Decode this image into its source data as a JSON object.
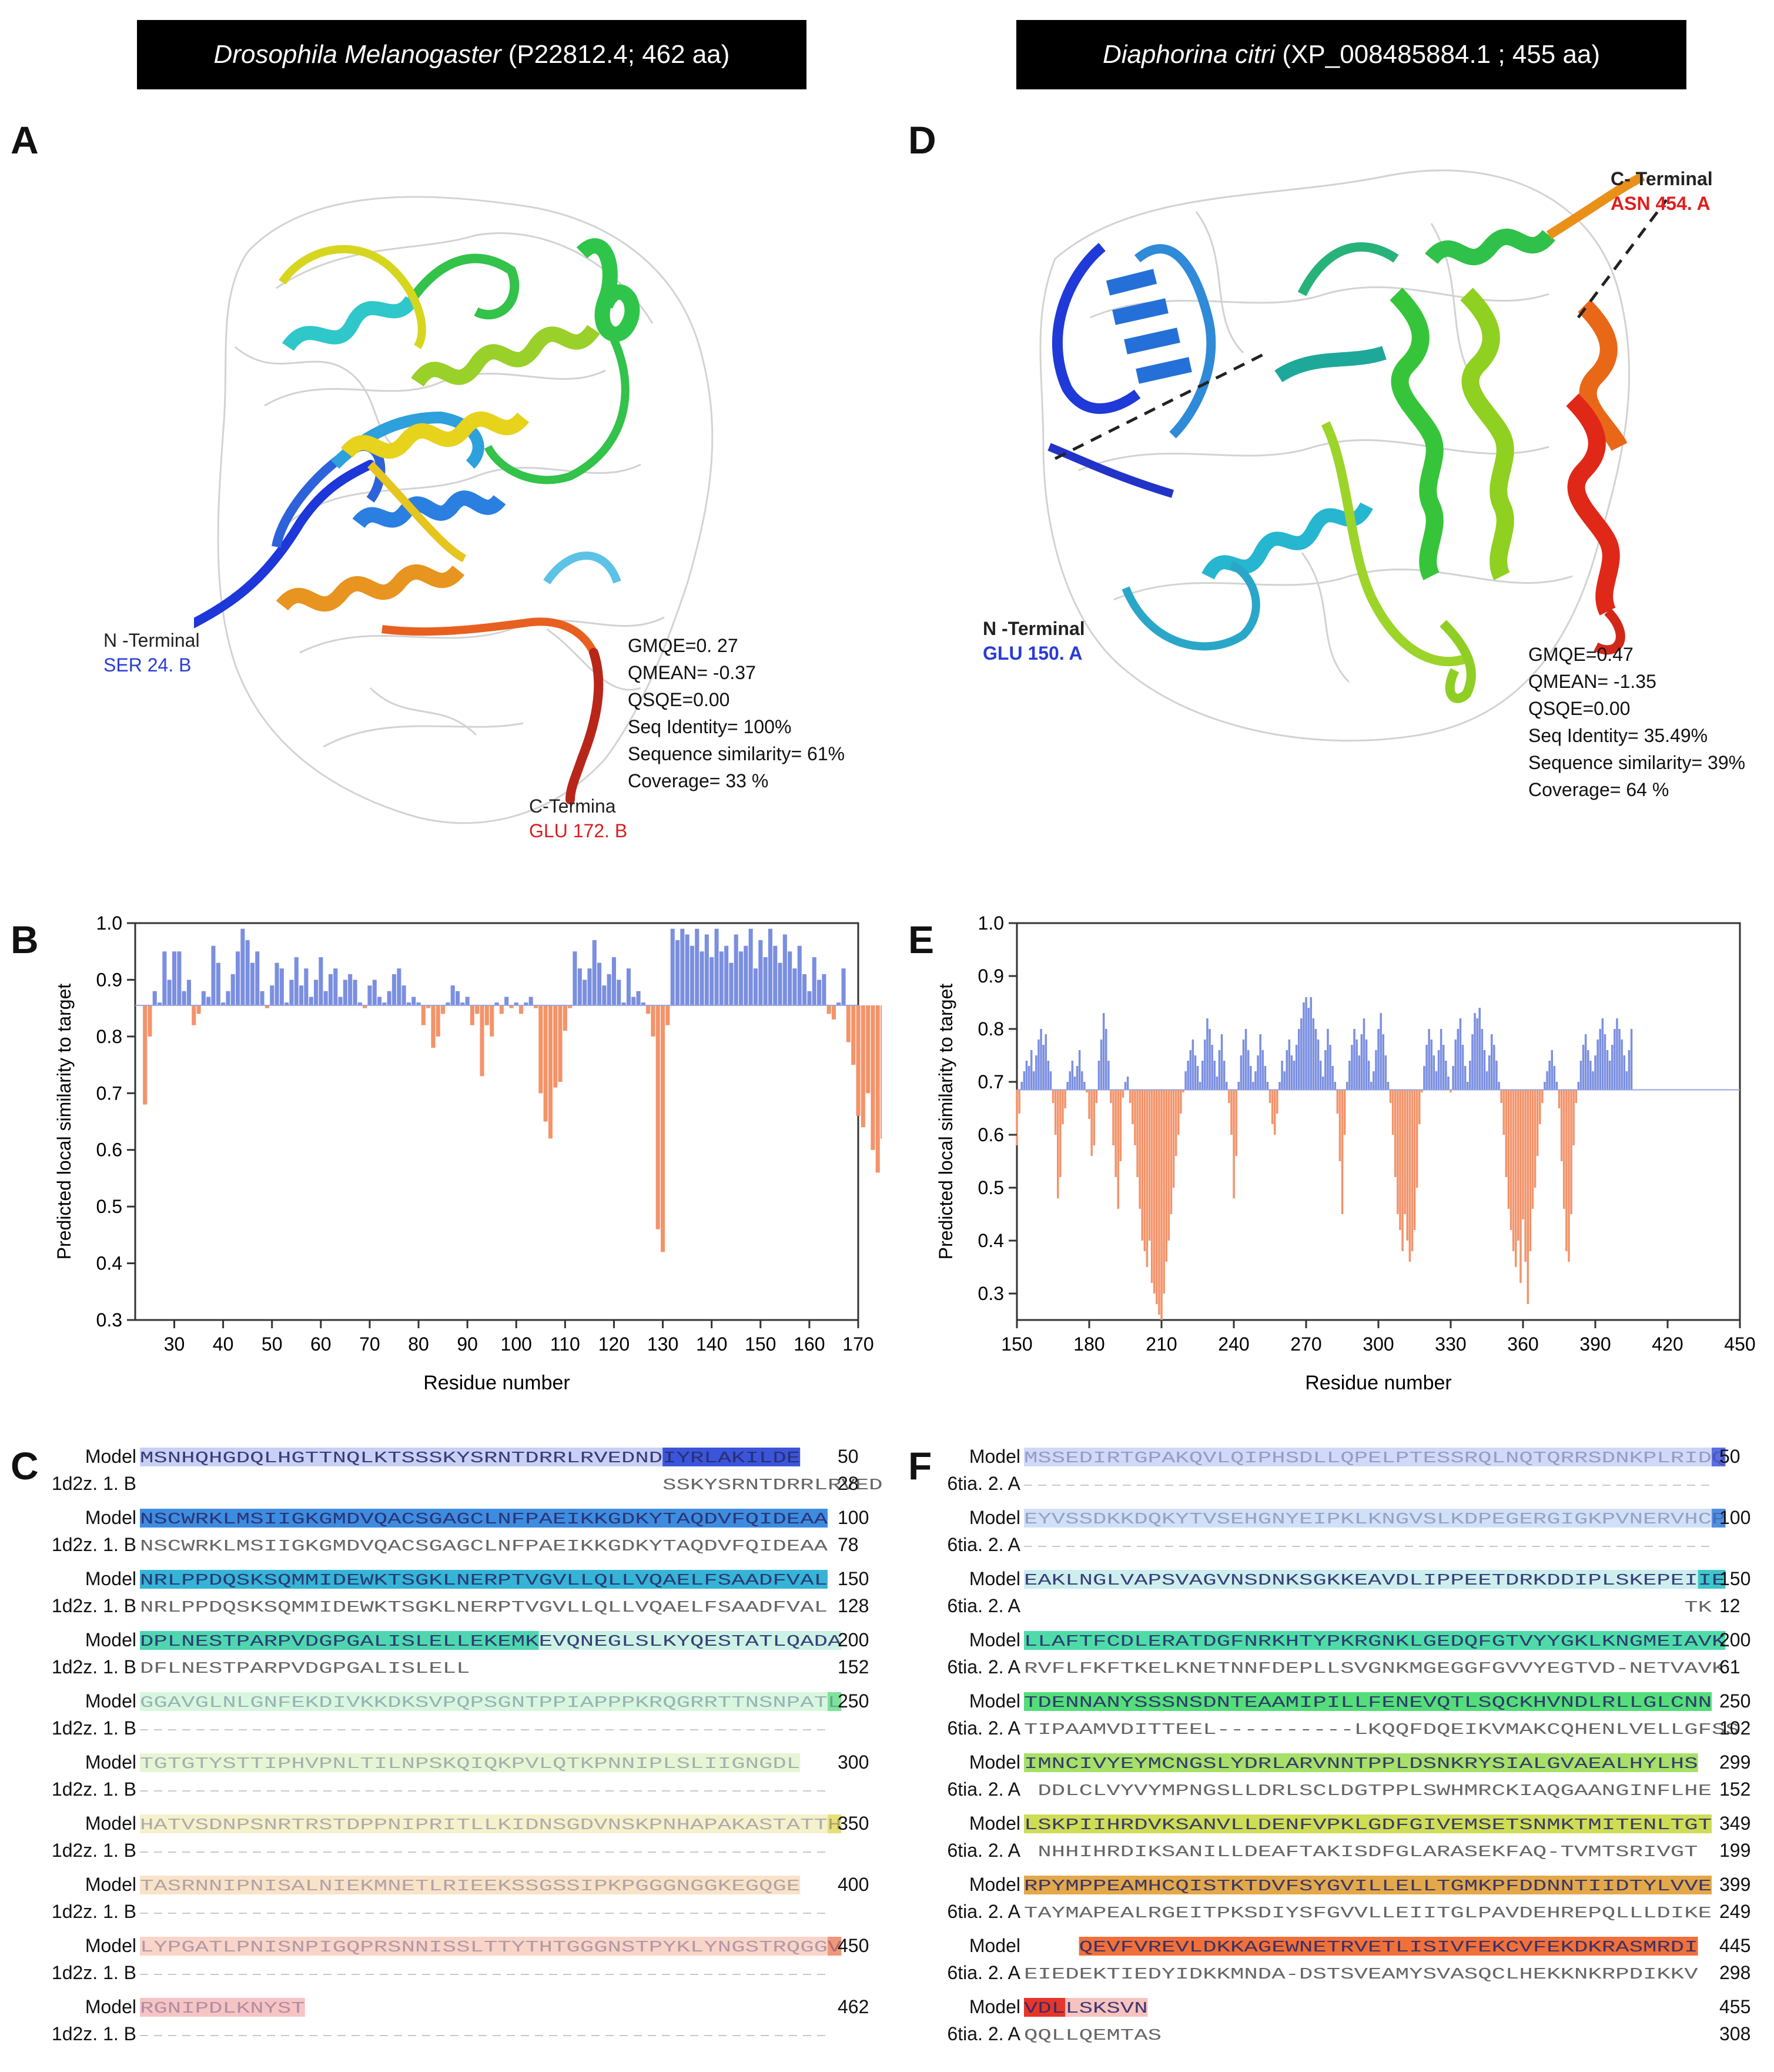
{
  "headers": {
    "left": {
      "species": "Drosophila Melanogaster",
      "rest": "(P22812.4;  462 aa)"
    },
    "right": {
      "species": "Diaphorina citri",
      "rest": "(XP_008485884.1 ; 455 aa)"
    }
  },
  "panels": {
    "A": "A",
    "B": "B",
    "C": "C",
    "D": "D",
    "E": "E",
    "F": "F"
  },
  "structure_A": {
    "n_label": "N -Terminal",
    "n_res": "SER 24. B",
    "c_label": "C-Termina",
    "c_res": "GLU 172. B",
    "metrics": [
      "GMQE=0. 27",
      "QMEAN= -0.37",
      "QSQE=0.00",
      "Seq Identity= 100%",
      "Sequence similarity= 61%",
      "Coverage= 33 %"
    ]
  },
  "structure_D": {
    "n_label": "N -Terminal",
    "n_res": "GLU  150. A",
    "c_label": "C- Terminal",
    "c_res": "ASN 454. A",
    "metrics": [
      "GMQE=0.47",
      "QMEAN= -1.35",
      "QSQE=0.00",
      "Seq Identity= 35.49%",
      "Sequence similarity= 39%",
      "Coverage= 64 %"
    ]
  },
  "colors": {
    "above": "#7b8fe0",
    "below": "#f3936a",
    "border": "#333333"
  },
  "chart_data": [
    {
      "type": "bar",
      "panel": "B",
      "xlabel": "Residue number",
      "ylabel": "Predicted local similarity to target",
      "xlim": [
        22,
        170
      ],
      "ylim": [
        0.3,
        1.0
      ],
      "baseline": 0.855,
      "xticks": [
        30,
        40,
        50,
        60,
        70,
        80,
        90,
        100,
        110,
        120,
        130,
        140,
        150,
        160,
        170
      ],
      "yticks": [
        "0.3",
        "0.4",
        "0.5",
        "0.6",
        "0.7",
        "0.8",
        "0.9",
        "1.0"
      ],
      "x_start": 24,
      "values": [
        0.68,
        0.8,
        0.88,
        0.86,
        0.95,
        0.9,
        0.95,
        0.95,
        0.88,
        0.9,
        0.82,
        0.84,
        0.88,
        0.87,
        0.96,
        0.93,
        0.86,
        0.88,
        0.91,
        0.95,
        0.99,
        0.97,
        0.93,
        0.95,
        0.88,
        0.85,
        0.89,
        0.93,
        0.92,
        0.86,
        0.9,
        0.94,
        0.89,
        0.92,
        0.87,
        0.9,
        0.94,
        0.88,
        0.91,
        0.92,
        0.87,
        0.9,
        0.91,
        0.9,
        0.86,
        0.85,
        0.89,
        0.9,
        0.87,
        0.86,
        0.88,
        0.91,
        0.92,
        0.89,
        0.86,
        0.87,
        0.86,
        0.82,
        0.85,
        0.78,
        0.8,
        0.84,
        0.86,
        0.89,
        0.88,
        0.86,
        0.87,
        0.82,
        0.84,
        0.73,
        0.82,
        0.8,
        0.86,
        0.84,
        0.87,
        0.85,
        0.86,
        0.84,
        0.86,
        0.87,
        0.85,
        0.7,
        0.65,
        0.62,
        0.71,
        0.72,
        0.81,
        0.85,
        0.95,
        0.92,
        0.9,
        0.92,
        0.97,
        0.93,
        0.89,
        0.91,
        0.94,
        0.9,
        0.86,
        0.92,
        0.87,
        0.88,
        0.86,
        0.84,
        0.8,
        0.46,
        0.42,
        0.82,
        0.99,
        0.97,
        0.99,
        0.98,
        0.96,
        0.99,
        0.95,
        0.98,
        0.94,
        0.99,
        0.95,
        0.96,
        0.93,
        0.98,
        0.95,
        0.96,
        0.99,
        0.92,
        0.97,
        0.94,
        0.99,
        0.96,
        0.93,
        0.98,
        0.95,
        0.92,
        0.96,
        0.91,
        0.88,
        0.94,
        0.9,
        0.91,
        0.84,
        0.83,
        0.86,
        0.92,
        0.79,
        0.75,
        0.66,
        0.64,
        0.7,
        0.6,
        0.56,
        0.62,
        0.47,
        0.58,
        0.43,
        0.52,
        0.55
      ]
    },
    {
      "type": "bar",
      "panel": "E",
      "xlabel": "Residue number",
      "ylabel": "Predicted local similarity to target",
      "xlim": [
        150,
        450
      ],
      "ylim": [
        0.25,
        1.0
      ],
      "baseline": 0.685,
      "xticks": [
        150,
        180,
        210,
        240,
        270,
        300,
        330,
        360,
        390,
        420,
        450
      ],
      "yticks": [
        "0.3",
        "0.4",
        "0.5",
        "0.6",
        "0.7",
        "0.8",
        "0.9",
        "1.0"
      ],
      "x_start": 150,
      "values": [
        0.58,
        0.64,
        0.7,
        0.72,
        0.74,
        0.73,
        0.76,
        0.72,
        0.75,
        0.78,
        0.8,
        0.77,
        0.79,
        0.74,
        0.72,
        0.66,
        0.6,
        0.48,
        0.52,
        0.62,
        0.65,
        0.7,
        0.72,
        0.74,
        0.71,
        0.73,
        0.76,
        0.72,
        0.7,
        0.68,
        0.63,
        0.56,
        0.58,
        0.66,
        0.74,
        0.78,
        0.83,
        0.8,
        0.74,
        0.66,
        0.58,
        0.52,
        0.46,
        0.55,
        0.67,
        0.7,
        0.71,
        0.66,
        0.62,
        0.58,
        0.52,
        0.46,
        0.4,
        0.38,
        0.35,
        0.4,
        0.32,
        0.3,
        0.28,
        0.26,
        0.25,
        0.3,
        0.36,
        0.4,
        0.45,
        0.5,
        0.56,
        0.6,
        0.64,
        0.68,
        0.72,
        0.74,
        0.76,
        0.78,
        0.75,
        0.73,
        0.7,
        0.74,
        0.78,
        0.82,
        0.8,
        0.77,
        0.74,
        0.71,
        0.76,
        0.79,
        0.74,
        0.7,
        0.66,
        0.6,
        0.48,
        0.56,
        0.7,
        0.75,
        0.78,
        0.8,
        0.76,
        0.73,
        0.7,
        0.72,
        0.75,
        0.79,
        0.76,
        0.73,
        0.7,
        0.66,
        0.62,
        0.6,
        0.64,
        0.7,
        0.74,
        0.72,
        0.76,
        0.78,
        0.75,
        0.74,
        0.77,
        0.8,
        0.82,
        0.85,
        0.86,
        0.84,
        0.86,
        0.82,
        0.8,
        0.78,
        0.74,
        0.71,
        0.76,
        0.8,
        0.77,
        0.73,
        0.7,
        0.64,
        0.55,
        0.45,
        0.6,
        0.7,
        0.74,
        0.77,
        0.8,
        0.78,
        0.75,
        0.79,
        0.82,
        0.78,
        0.74,
        0.7,
        0.72,
        0.76,
        0.8,
        0.83,
        0.79,
        0.75,
        0.7,
        0.66,
        0.6,
        0.52,
        0.45,
        0.42,
        0.38,
        0.45,
        0.4,
        0.36,
        0.38,
        0.42,
        0.5,
        0.62,
        0.68,
        0.73,
        0.77,
        0.8,
        0.78,
        0.75,
        0.72,
        0.76,
        0.8,
        0.77,
        0.74,
        0.71,
        0.68,
        0.73,
        0.78,
        0.8,
        0.82,
        0.77,
        0.73,
        0.7,
        0.74,
        0.79,
        0.83,
        0.82,
        0.84,
        0.8,
        0.76,
        0.72,
        0.75,
        0.79,
        0.77,
        0.74,
        0.7,
        0.66,
        0.6,
        0.52,
        0.46,
        0.42,
        0.38,
        0.35,
        0.4,
        0.32,
        0.44,
        0.36,
        0.28,
        0.38,
        0.46,
        0.5,
        0.56,
        0.62,
        0.66,
        0.7,
        0.72,
        0.74,
        0.76,
        0.73,
        0.7,
        0.65,
        0.55,
        0.46,
        0.38,
        0.36,
        0.45,
        0.58,
        0.66,
        0.7,
        0.74,
        0.77,
        0.79,
        0.76,
        0.74,
        0.72,
        0.75,
        0.78,
        0.8,
        0.82,
        0.79,
        0.76,
        0.74,
        0.77,
        0.8,
        0.82,
        0.8,
        0.78,
        0.75,
        0.72,
        0.76,
        0.8
      ]
    }
  ],
  "alignment_C": {
    "model_label": "Model",
    "template_label": "1d2z. 1. B",
    "rows": [
      {
        "model": "MSNHQHGDQLHGTTNQLKTSSSKYSRNTDRRLRVEDNDIYRLAKILDE",
        "model_faded": 38,
        "template": "SSKYSRNTDRRLRVEDNDIYRLAKILDE",
        "tmpl_offset": 38,
        "mnum": "50",
        "tnum": "28",
        "color": "#3a55d9",
        "fade": "#c9d0f5"
      },
      {
        "model": "NSCWRKLMSIIGKGMDVQACSGAGCLNFPAEIKKGDKYTAQDVFQIDEAA",
        "model_faded": 0,
        "template": "NSCWRKLMSIIGKGMDVQACSGAGCLNFPAEIKKGDKYTAQDVFQIDEAA",
        "tmpl_offset": 0,
        "mnum": "100",
        "tnum": "78",
        "color": "#3d8ce0",
        "fade": "#c9ddf5"
      },
      {
        "model": "NRLPPDQSKSQMMIDEWKTSGKLNERPTVGVLLQLLVQAELFSAADFVAL",
        "model_faded": 0,
        "template": "NRLPPDQSKSQMMIDEWKTSGKLNERPTVGVLLQLLVQAELFSAADFVAL",
        "tmpl_offset": 0,
        "mnum": "150",
        "tnum": "128",
        "color": "#35b4d6",
        "fade": "#c7e9f2"
      },
      {
        "model": "DPLNESTPARPVDGPGALISLELLEKEMKEVQNEGLSLKYQESTATLQADA",
        "model_faded": -22,
        "template": "DFLNESTPARPVDGPGALISLELL",
        "tmpl_offset": 0,
        "mnum": "200",
        "tnum": "152",
        "color": "#4fd6b0",
        "fade": "#ccf2e6"
      },
      {
        "model": "GGAVGLNLGNFEKDIVKKDKSVPQPSGNTPPIAPPPKRQGRRTTNSNPATL",
        "model_faded": 50,
        "template": "",
        "tmpl_offset": 0,
        "mnum": "250",
        "tnum": "",
        "color": "#7ee39a",
        "fade": "#d8f7df"
      },
      {
        "model": "TGTGTYSTTIPHVPNLTILNPSKQIQKPVLQTKPNNIPLSLIIGNGDL",
        "model_faded": 50,
        "template": "",
        "tmpl_offset": 0,
        "mnum": "300",
        "tnum": "",
        "color": "#b6e67c",
        "fade": "#e6f6d4"
      },
      {
        "model": "HATVSDNPSNRTRSTDPPNIPRITLLKIDNSGDVNSKPNHAPAKASTATTH",
        "model_faded": 50,
        "template": "",
        "tmpl_offset": 0,
        "mnum": "350",
        "tnum": "",
        "color": "#e7e07a",
        "fade": "#f5f1cc"
      },
      {
        "model": "TASRNNIPNISALNIEKMNETLRIEEKSSGSSIPKPGGGNGGKEGQGE",
        "model_faded": 50,
        "template": "",
        "tmpl_offset": 0,
        "mnum": "400",
        "tnum": "",
        "color": "#f1c27a",
        "fade": "#f9e3c8"
      },
      {
        "model": "LYPGATLPNISNPIGQPRSNNISSLTTYTHTGGGNSTPYKLYNGSTRQGGV",
        "model_faded": 50,
        "template": "",
        "tmpl_offset": 0,
        "mnum": "450",
        "tnum": "",
        "color": "#f1967a",
        "fade": "#f9d4c8"
      },
      {
        "model": "RGNIPDLKNYST",
        "model_faded": 12,
        "template": "",
        "tmpl_offset": 0,
        "mnum": "462",
        "tnum": "",
        "color": "#ef7a7a",
        "fade": "#f7c4c4"
      }
    ]
  },
  "alignment_F": {
    "model_label": "Model",
    "template_label": "6tia. 2. A",
    "rows": [
      {
        "model": "MSSEDIRTGPAKQVLQIPHSDLLQPELPTESSRQLNQTQRRSDNKPLRIDQ",
        "model_faded": 50,
        "template": "",
        "tmpl_offset": 0,
        "mnum": "50",
        "tnum": "",
        "color": "#5a6fe0",
        "fade": "#d2d8f7"
      },
      {
        "model": "EYVSSDKKDQKYTVSEHGNYEIPKLKNGVSLKDPEGERGIGKPVNERVHCP",
        "model_faded": 50,
        "template": "",
        "tmpl_offset": 0,
        "mnum": "100",
        "tnum": "",
        "color": "#4f8fe0",
        "fade": "#d0e0f6"
      },
      {
        "model": "EAKLNGLVAPSVAGVNSDNKSGKKEAVDLIPPEETDRKDDIPLSKEPEIIE",
        "model_faded": 49,
        "template": "TK",
        "tmpl_offset": 48,
        "mnum": "150",
        "tnum": "12",
        "color": "#3fc6c8",
        "fade": "#cdeeee"
      },
      {
        "model": "LLAFTFCDLERATDGFNRKHTYPKRGNKLGEDQFGTVYYGKLKNGMEIAVK",
        "model_faded": 0,
        "template": "RVFLFKFTKELKNETNNFDEPLLSVGNKMGEGGFGVVYEGTVD-NETVAVK",
        "tmpl_offset": 0,
        "mnum": "200",
        "tnum": "61",
        "color": "#4fdba8",
        "fade": "#ccf3e4"
      },
      {
        "model": "TDENNANYSSSNSDNTEAAMIPILLFENEVQTLSQCKHVNDLRLLGLCNN",
        "model_faded": 0,
        "template": "TIPAAMVDITTEEL----------LKQQFDQEIKVMAKCQHENLVELLGFSS",
        "tmpl_offset": 0,
        "mnum": "250",
        "tnum": "102",
        "color": "#55dd7a",
        "fade": "#d0f5da"
      },
      {
        "model": "IMNCIVYEYMCNGSLYDRLARVNNTPPLDSNKRYSIALGVAEALHYLHS",
        "model_faded": 0,
        "template": "DDLCLVYVYMPNGSLLDRLSCLDGTPPLSWHMRCKIAQGAANGINFLHE",
        "tmpl_offset": 1,
        "mnum": "299",
        "tnum": "152",
        "color": "#a6e068",
        "fade": "#e3f5cf"
      },
      {
        "model": "LSKPIIHRDVKSANVLLDENFVPKLGDFGIVEMSETSNMKTMITENLTGT",
        "model_faded": 0,
        "template": "NHHIHRDIKSANILLDEAFTAKISDFGLARASEKFAQ-TVMTSRIVGT",
        "tmpl_offset": 1,
        "mnum": "349",
        "tnum": "199",
        "color": "#cfdd55",
        "fade": "#eff3c8"
      },
      {
        "model": "RPYMPPEAMHCQISTKTDVFSYGVILLELLTGMKPFDDNNTIIDTYLVVE",
        "model_faded": 0,
        "template": "TAYMAPEALRGEITPKSDIYSFGVVLLEIITGLPAVDEHREPQLLLDIKE",
        "tmpl_offset": 0,
        "mnum": "399",
        "tnum": "249",
        "color": "#e3a84a",
        "fade": "#f7e3c4"
      },
      {
        "model": "QEVFVREVLDKKAGEWNETRVETLISIVFEKCVFEKDKRASMRDI",
        "model_faded": 0,
        "template": "EIEDEKTIEDYIDKKMNDA-DSTSVEAMYSVASQCLHEKKNKRPDIKKV",
        "tmpl_offset": -4,
        "mnum": "445",
        "tnum": "298",
        "color": "#f0703a",
        "fade": "#fbd1bf"
      },
      {
        "model": "VDLLSKSVN",
        "model_faded": -6,
        "template": "QQLLQEMTAS",
        "tmpl_offset": 0,
        "mnum": "455",
        "tnum": "308",
        "color": "#e8352a",
        "fade": "#f8c3bf"
      }
    ]
  }
}
